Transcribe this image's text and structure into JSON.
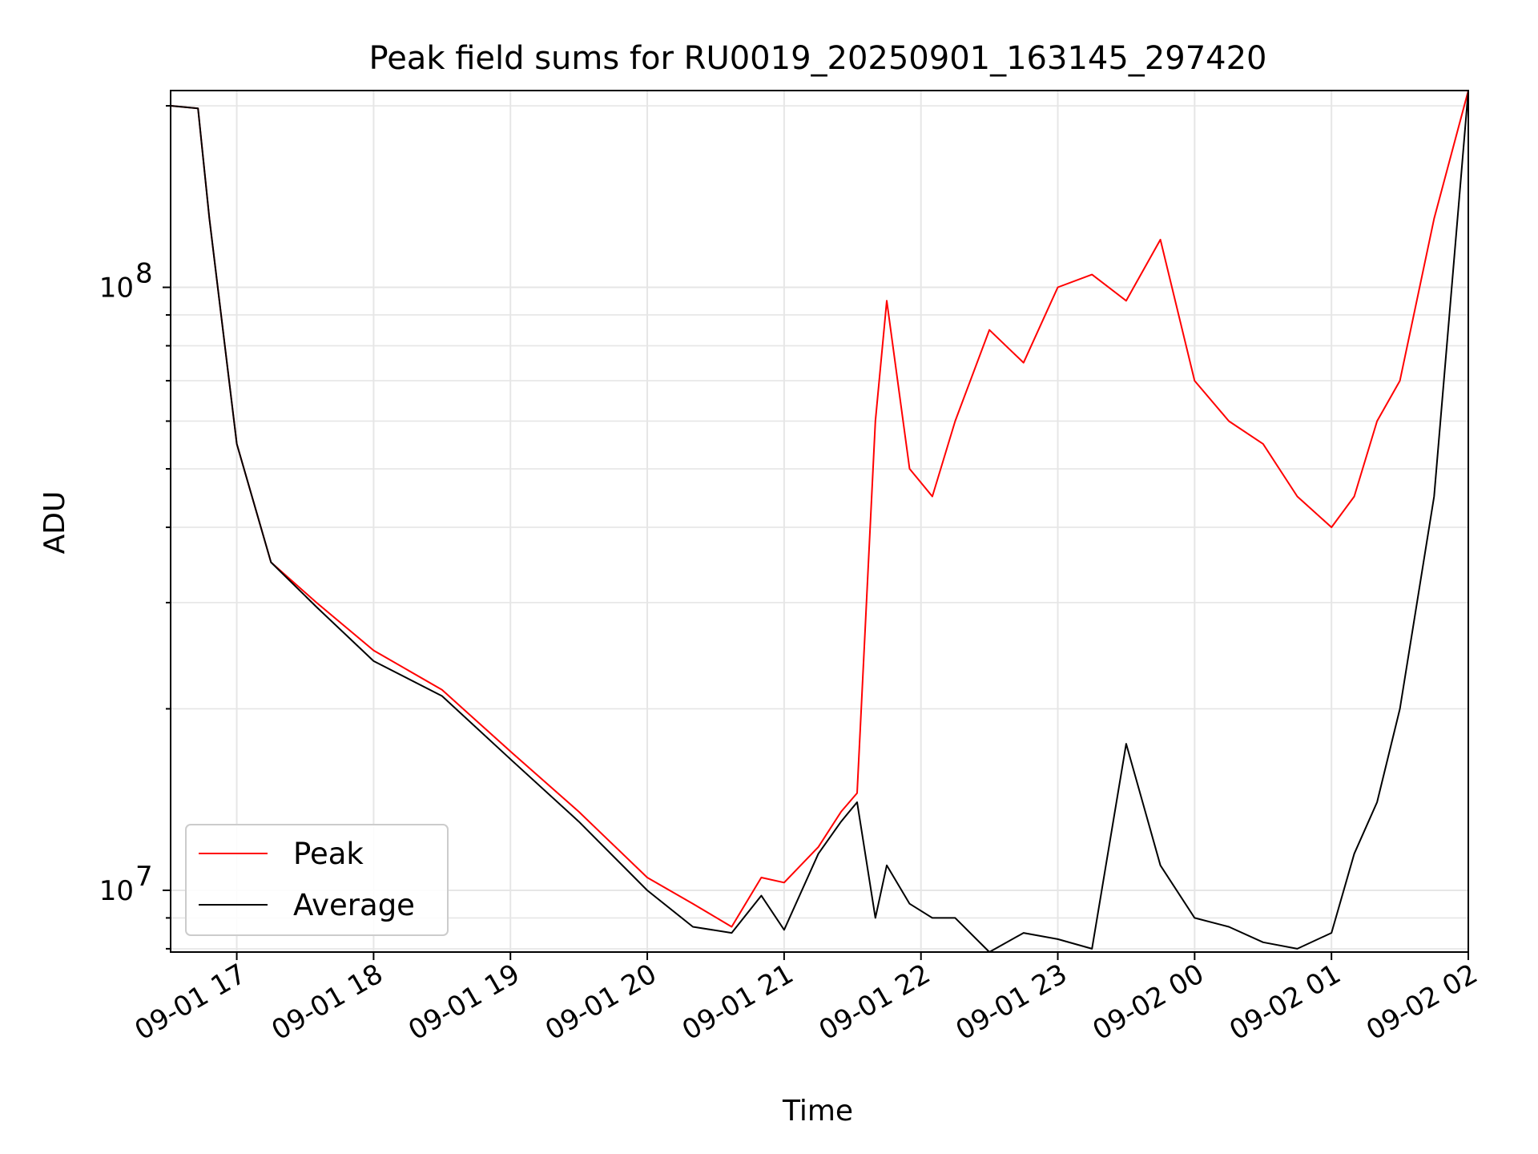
{
  "chart_data": {
    "type": "line",
    "title": "Peak field sums for RU0019_20250901_163145_297420",
    "xlabel": "Time",
    "ylabel": "ADU",
    "y_scale": "log",
    "ylim": [
      7900000,
      212000000
    ],
    "xlim": [
      "2025-09-01 16:31",
      "2025-09-02 02:00"
    ],
    "x_ticks": [
      "09-01 17",
      "09-01 18",
      "09-01 19",
      "09-01 20",
      "09-01 21",
      "09-01 22",
      "09-01 23",
      "09-02 00",
      "09-02 01",
      "09-02 02"
    ],
    "y_ticks": [
      {
        "label": "10",
        "exp": "7",
        "value": 10000000
      },
      {
        "label": "10",
        "exp": "8",
        "value": 100000000
      }
    ],
    "grid": true,
    "legend": {
      "position": "lower-left"
    },
    "series": [
      {
        "name": "Peak",
        "color": "#ff0000",
        "x": [
          "2025-09-01 16:31",
          "2025-09-01 16:43",
          "2025-09-01 16:48",
          "2025-09-01 17:00",
          "2025-09-01 17:15",
          "2025-09-01 17:35",
          "2025-09-01 18:00",
          "2025-09-01 18:30",
          "2025-09-01 19:00",
          "2025-09-01 19:30",
          "2025-09-01 20:00",
          "2025-09-01 20:20",
          "2025-09-01 20:37",
          "2025-09-01 20:50",
          "2025-09-01 21:00",
          "2025-09-01 21:15",
          "2025-09-01 21:25",
          "2025-09-01 21:32",
          "2025-09-01 21:40",
          "2025-09-01 21:45",
          "2025-09-01 21:55",
          "2025-09-01 22:05",
          "2025-09-01 22:15",
          "2025-09-01 22:30",
          "2025-09-01 22:45",
          "2025-09-01 23:00",
          "2025-09-01 23:15",
          "2025-09-01 23:30",
          "2025-09-01 23:45",
          "2025-09-02 00:00",
          "2025-09-02 00:15",
          "2025-09-02 00:30",
          "2025-09-02 00:45",
          "2025-09-02 01:00",
          "2025-09-02 01:10",
          "2025-09-02 01:20",
          "2025-09-02 01:30",
          "2025-09-02 01:45",
          "2025-09-02 02:00"
        ],
        "values": [
          200000000,
          198000000,
          130000000,
          55000000,
          35000000,
          30000000,
          25000000,
          21500000,
          17000000,
          13500000,
          10500000,
          9500000,
          8700000,
          10500000,
          10300000,
          11800000,
          13500000,
          14500000,
          60000000,
          95000000,
          50000000,
          45000000,
          60000000,
          85000000,
          75000000,
          100000000,
          105000000,
          95000000,
          120000000,
          70000000,
          60000000,
          55000000,
          45000000,
          40000000,
          45000000,
          60000000,
          70000000,
          130000000,
          215000000
        ]
      },
      {
        "name": "Average",
        "color": "#000000",
        "x": [
          "2025-09-01 16:31",
          "2025-09-01 16:43",
          "2025-09-01 16:48",
          "2025-09-01 17:00",
          "2025-09-01 17:15",
          "2025-09-01 17:35",
          "2025-09-01 18:00",
          "2025-09-01 18:30",
          "2025-09-01 19:00",
          "2025-09-01 19:30",
          "2025-09-01 20:00",
          "2025-09-01 20:20",
          "2025-09-01 20:37",
          "2025-09-01 20:50",
          "2025-09-01 21:00",
          "2025-09-01 21:15",
          "2025-09-01 21:25",
          "2025-09-01 21:32",
          "2025-09-01 21:40",
          "2025-09-01 21:45",
          "2025-09-01 21:55",
          "2025-09-01 22:05",
          "2025-09-01 22:15",
          "2025-09-01 22:30",
          "2025-09-01 22:45",
          "2025-09-01 23:00",
          "2025-09-01 23:15",
          "2025-09-01 23:30",
          "2025-09-01 23:45",
          "2025-09-02 00:00",
          "2025-09-02 00:15",
          "2025-09-02 00:30",
          "2025-09-02 00:45",
          "2025-09-02 01:00",
          "2025-09-02 01:10",
          "2025-09-02 01:20",
          "2025-09-02 01:30",
          "2025-09-02 01:45",
          "2025-09-02 02:00"
        ],
        "values": [
          200000000,
          198000000,
          130000000,
          55000000,
          35000000,
          29500000,
          24000000,
          21000000,
          16500000,
          13000000,
          10000000,
          8700000,
          8500000,
          9800000,
          8600000,
          11500000,
          13000000,
          14000000,
          9000000,
          11000000,
          9500000,
          9000000,
          9000000,
          7900000,
          8500000,
          8300000,
          8000000,
          17500000,
          11000000,
          9000000,
          8700000,
          8200000,
          8000000,
          8500000,
          11500000,
          14000000,
          20000000,
          45000000,
          215000000
        ]
      }
    ]
  }
}
